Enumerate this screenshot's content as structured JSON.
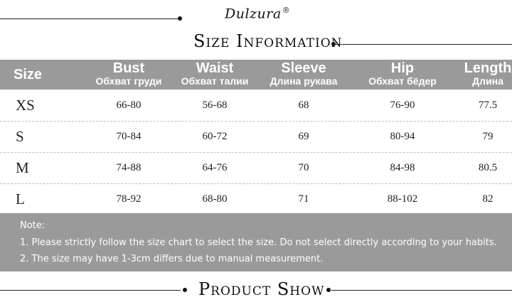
{
  "brand": {
    "name": "Dulzura",
    "mark": "®"
  },
  "titles": {
    "size_info": "Size Information",
    "product_show": "Product Show"
  },
  "table": {
    "headers": [
      {
        "en": "Size",
        "ru": ""
      },
      {
        "en": "Bust",
        "ru": "Обхват груди"
      },
      {
        "en": "Waist",
        "ru": "Обхват талии"
      },
      {
        "en": "Sleeve",
        "ru": "Длина рукава"
      },
      {
        "en": "Hip",
        "ru": "Обхват бёдер"
      },
      {
        "en": "Length",
        "ru": "Длина"
      }
    ],
    "rows": [
      {
        "size": "XS",
        "bust": "66-80",
        "waist": "56-68",
        "sleeve": "68",
        "hip": "76-90",
        "length": "77.5"
      },
      {
        "size": "S",
        "bust": "70-84",
        "waist": "60-72",
        "sleeve": "69",
        "hip": "80-94",
        "length": "79"
      },
      {
        "size": "M",
        "bust": "74-88",
        "waist": "64-76",
        "sleeve": "70",
        "hip": "84-98",
        "length": "80.5"
      },
      {
        "size": "L",
        "bust": "78-92",
        "waist": "68-80",
        "sleeve": "71",
        "hip": "88-102",
        "length": "82"
      }
    ]
  },
  "notes": {
    "title": "Note:",
    "items": [
      "1. Please strictly follow the size chart to select the size. Do not select directly according to your habits.",
      "2. The size may have 1-3cm differs due to manual measurement."
    ]
  },
  "colors": {
    "header_bg": "#9a9a9a",
    "header_text": "#ffffff",
    "text": "#222222"
  }
}
